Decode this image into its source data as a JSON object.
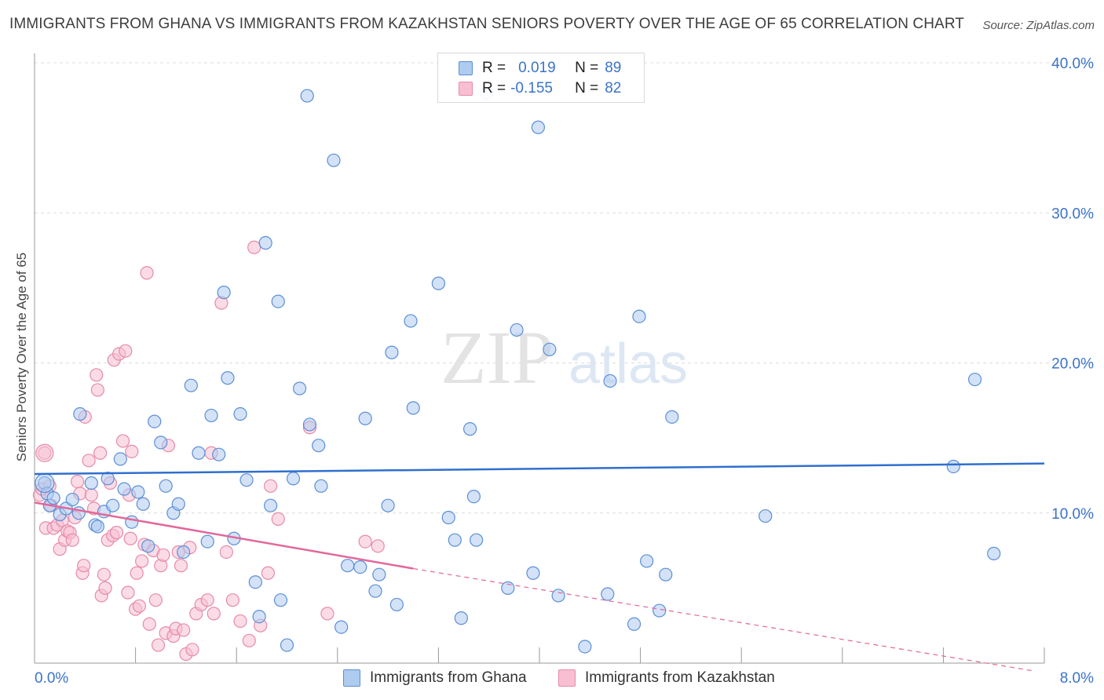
{
  "title": "IMMIGRANTS FROM GHANA VS IMMIGRANTS FROM KAZAKHSTAN SENIORS POVERTY OVER THE AGE OF 65 CORRELATION CHART",
  "source": "Source: ZipAtlas.com",
  "watermark": {
    "zip": "ZIP",
    "atlas": "atlas"
  },
  "legend": {
    "r_label": "R =",
    "n_label": "N =",
    "ghana": {
      "r": "0.019",
      "n": "89"
    },
    "kazakhstan": {
      "r": "-0.155",
      "n": "82"
    }
  },
  "bottom_legend": {
    "ghana": "Immigrants from Ghana",
    "kazakhstan": "Immigrants from Kazakhstan"
  },
  "colors": {
    "ghana_fill": "#aecbf0",
    "ghana_stroke": "#5b8fd6",
    "ghana_line": "#2f6fce",
    "kazakhstan_fill": "#f8bfd2",
    "kazakhstan_stroke": "#e68aaa",
    "kazakhstan_line": "#e2679a",
    "tick_label": "#3b73c8"
  },
  "chart_data": {
    "type": "scatter",
    "title": "IMMIGRANTS FROM GHANA VS IMMIGRANTS FROM KAZAKHSTAN SENIORS POVERTY OVER THE AGE OF 65 CORRELATION CHART",
    "xlabel": "",
    "ylabel": "Seniors Poverty Over the Age of 65",
    "xlim": [
      0,
      8
    ],
    "ylim": [
      0,
      40
    ],
    "x_tick_labels": [
      "0.0%",
      "8.0%"
    ],
    "y_ticks": [
      10,
      20,
      30,
      40
    ],
    "y_tick_labels": [
      "10.0%",
      "20.0%",
      "30.0%",
      "40.0%"
    ],
    "series": [
      {
        "name": "Immigrants from Ghana",
        "r": 0.019,
        "n": 89,
        "trend": {
          "x0": 0.0,
          "y0": 12.6,
          "x1": 8.0,
          "y1": 13.3,
          "style": "solid"
        },
        "points": [
          [
            0.08,
            12.0
          ],
          [
            0.1,
            11.3
          ],
          [
            0.12,
            10.5
          ],
          [
            0.15,
            11.0
          ],
          [
            0.2,
            9.9
          ],
          [
            0.25,
            10.3
          ],
          [
            0.3,
            10.9
          ],
          [
            0.35,
            10.0
          ],
          [
            0.36,
            16.6
          ],
          [
            0.45,
            12.0
          ],
          [
            0.48,
            9.2
          ],
          [
            0.5,
            9.1
          ],
          [
            0.55,
            10.1
          ],
          [
            0.58,
            12.3
          ],
          [
            0.62,
            10.5
          ],
          [
            0.68,
            13.6
          ],
          [
            0.71,
            11.6
          ],
          [
            0.77,
            9.4
          ],
          [
            0.82,
            11.4
          ],
          [
            0.86,
            10.6
          ],
          [
            0.9,
            7.8
          ],
          [
            0.95,
            16.1
          ],
          [
            1.0,
            14.7
          ],
          [
            1.04,
            11.8
          ],
          [
            1.1,
            10.0
          ],
          [
            1.14,
            10.6
          ],
          [
            1.18,
            7.4
          ],
          [
            1.24,
            18.5
          ],
          [
            1.3,
            14.0
          ],
          [
            1.37,
            8.1
          ],
          [
            1.4,
            16.5
          ],
          [
            1.46,
            13.9
          ],
          [
            1.5,
            24.7
          ],
          [
            1.53,
            19.0
          ],
          [
            1.58,
            8.3
          ],
          [
            1.63,
            16.6
          ],
          [
            1.68,
            12.2
          ],
          [
            1.75,
            5.4
          ],
          [
            1.78,
            3.1
          ],
          [
            1.83,
            28.0
          ],
          [
            1.87,
            10.5
          ],
          [
            1.93,
            24.1
          ],
          [
            1.95,
            4.2
          ],
          [
            2.0,
            1.2
          ],
          [
            2.05,
            12.3
          ],
          [
            2.1,
            18.3
          ],
          [
            2.16,
            37.8
          ],
          [
            2.18,
            15.9
          ],
          [
            2.25,
            14.5
          ],
          [
            2.27,
            11.8
          ],
          [
            2.37,
            33.5
          ],
          [
            2.43,
            2.4
          ],
          [
            2.48,
            6.5
          ],
          [
            2.58,
            6.4
          ],
          [
            2.62,
            16.3
          ],
          [
            2.7,
            4.8
          ],
          [
            2.73,
            5.9
          ],
          [
            2.8,
            10.5
          ],
          [
            2.83,
            20.7
          ],
          [
            2.87,
            3.9
          ],
          [
            2.98,
            22.8
          ],
          [
            3.0,
            17.0
          ],
          [
            3.2,
            25.3
          ],
          [
            3.28,
            9.7
          ],
          [
            3.33,
            8.2
          ],
          [
            3.38,
            3.0
          ],
          [
            3.45,
            15.6
          ],
          [
            3.48,
            11.1
          ],
          [
            3.5,
            8.2
          ],
          [
            3.58,
            38.0
          ],
          [
            3.75,
            5.0
          ],
          [
            3.82,
            22.2
          ],
          [
            3.95,
            6.0
          ],
          [
            3.99,
            35.7
          ],
          [
            4.08,
            20.9
          ],
          [
            4.15,
            4.5
          ],
          [
            4.36,
            1.1
          ],
          [
            4.54,
            4.6
          ],
          [
            4.56,
            18.8
          ],
          [
            4.75,
            2.6
          ],
          [
            4.79,
            23.1
          ],
          [
            4.85,
            6.8
          ],
          [
            4.95,
            3.5
          ],
          [
            5.0,
            5.9
          ],
          [
            5.05,
            16.4
          ],
          [
            5.79,
            9.8
          ],
          [
            7.28,
            13.1
          ],
          [
            7.45,
            18.9
          ],
          [
            7.6,
            7.3
          ]
        ]
      },
      {
        "name": "Immigrants from Kazakhstan",
        "r": -0.155,
        "n": 82,
        "trend": {
          "x0": 0.0,
          "y0": 10.7,
          "x1": 3.0,
          "y1": 6.3,
          "dash_x1": 7.9,
          "dash_y1": -0.5
        },
        "points": [
          [
            0.04,
            11.2
          ],
          [
            0.06,
            11.6
          ],
          [
            0.08,
            14.0
          ],
          [
            0.09,
            9.0
          ],
          [
            0.12,
            11.8
          ],
          [
            0.13,
            10.5
          ],
          [
            0.15,
            9.0
          ],
          [
            0.18,
            9.2
          ],
          [
            0.2,
            7.6
          ],
          [
            0.22,
            9.5
          ],
          [
            0.24,
            8.2
          ],
          [
            0.26,
            8.8
          ],
          [
            0.28,
            8.7
          ],
          [
            0.3,
            8.2
          ],
          [
            0.32,
            9.7
          ],
          [
            0.34,
            12.1
          ],
          [
            0.36,
            11.3
          ],
          [
            0.38,
            6.0
          ],
          [
            0.39,
            6.5
          ],
          [
            0.4,
            16.4
          ],
          [
            0.43,
            13.5
          ],
          [
            0.45,
            11.2
          ],
          [
            0.47,
            10.3
          ],
          [
            0.49,
            19.2
          ],
          [
            0.5,
            18.2
          ],
          [
            0.52,
            14.0
          ],
          [
            0.53,
            4.5
          ],
          [
            0.55,
            5.9
          ],
          [
            0.56,
            5.0
          ],
          [
            0.58,
            8.2
          ],
          [
            0.6,
            12.0
          ],
          [
            0.62,
            8.5
          ],
          [
            0.63,
            20.2
          ],
          [
            0.65,
            8.7
          ],
          [
            0.67,
            20.6
          ],
          [
            0.7,
            14.8
          ],
          [
            0.72,
            20.8
          ],
          [
            0.74,
            4.7
          ],
          [
            0.75,
            11.2
          ],
          [
            0.76,
            8.3
          ],
          [
            0.77,
            14.1
          ],
          [
            0.8,
            3.6
          ],
          [
            0.81,
            6.0
          ],
          [
            0.83,
            3.8
          ],
          [
            0.85,
            6.8
          ],
          [
            0.87,
            7.9
          ],
          [
            0.89,
            26.0
          ],
          [
            0.91,
            2.6
          ],
          [
            0.94,
            7.5
          ],
          [
            0.96,
            4.2
          ],
          [
            0.98,
            1.2
          ],
          [
            1.0,
            6.5
          ],
          [
            1.02,
            7.2
          ],
          [
            1.04,
            2.0
          ],
          [
            1.06,
            14.5
          ],
          [
            1.1,
            1.8
          ],
          [
            1.12,
            2.3
          ],
          [
            1.14,
            7.4
          ],
          [
            1.16,
            6.5
          ],
          [
            1.18,
            2.2
          ],
          [
            1.2,
            0.6
          ],
          [
            1.23,
            7.7
          ],
          [
            1.25,
            0.9
          ],
          [
            1.28,
            3.3
          ],
          [
            1.32,
            3.9
          ],
          [
            1.37,
            4.2
          ],
          [
            1.4,
            14.0
          ],
          [
            1.42,
            3.3
          ],
          [
            1.48,
            24.0
          ],
          [
            1.52,
            7.4
          ],
          [
            1.57,
            4.2
          ],
          [
            1.63,
            2.8
          ],
          [
            1.7,
            1.5
          ],
          [
            1.74,
            27.7
          ],
          [
            1.79,
            2.5
          ],
          [
            1.85,
            6.0
          ],
          [
            1.87,
            11.8
          ],
          [
            1.93,
            9.6
          ],
          [
            2.18,
            15.7
          ],
          [
            2.32,
            3.3
          ],
          [
            2.62,
            8.1
          ],
          [
            2.72,
            7.8
          ]
        ]
      }
    ]
  }
}
